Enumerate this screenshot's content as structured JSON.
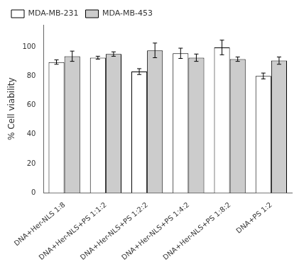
{
  "chart_data": {
    "type": "bar",
    "categories": [
      "DNA+Her-NLS 1:8",
      "DNA+Her-NLS+PS 1:1:2",
      "DNA+Her-NLS+PS 1:2:2",
      "DNA+Her-NLS+PS 1:4:2",
      "DNA+Her-NLS+PS 1:8:2",
      "DNA+PS 1:2"
    ],
    "series": [
      {
        "name": "MDA-MB-231",
        "color": "white",
        "values": [
          89.5,
          92.5,
          83.0,
          95.5,
          99.5,
          80.0
        ],
        "errors": [
          1.5,
          1.0,
          2.0,
          3.5,
          5.0,
          2.0
        ]
      },
      {
        "name": "MDA-MB-453",
        "color": "#cccccc",
        "values": [
          93.5,
          95.0,
          97.5,
          92.5,
          91.5,
          90.5
        ],
        "errors": [
          3.5,
          1.5,
          5.0,
          2.5,
          1.5,
          2.5
        ]
      }
    ],
    "ylabel": "% Cell viability",
    "ylim": [
      0,
      115
    ],
    "yticks": [
      0,
      20,
      40,
      60,
      80,
      100
    ],
    "grid": false,
    "legend": "upper left"
  }
}
